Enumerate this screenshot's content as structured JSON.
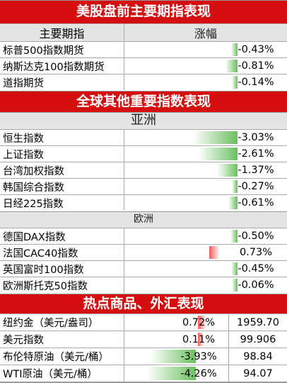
{
  "section_us": {
    "title": "美股盘前主要期指表现",
    "col_index": "主要期指",
    "col_change": "涨幅",
    "rows": [
      {
        "name": "标普500指数期货",
        "change": "-0.43%",
        "level": -0.43
      },
      {
        "name": "纳斯达克100指数期货",
        "change": "-0.81%",
        "level": -0.81
      },
      {
        "name": "道指期货",
        "change": "-0.14%",
        "level": -0.14
      }
    ]
  },
  "section_global": {
    "title": "全球其他重要指数表现",
    "asia": {
      "title": "亚洲",
      "rows": [
        {
          "name": "恒生指数",
          "change": "-3.03%",
          "level": -3.03
        },
        {
          "name": "上证指数",
          "change": "-2.61%",
          "level": -2.61
        },
        {
          "name": "台湾加权指数",
          "change": "-1.37%",
          "level": -1.37
        },
        {
          "name": "韩国综合指数",
          "change": "-0.27%",
          "level": -0.27
        },
        {
          "name": "日经225指数",
          "change": "-0.61%",
          "level": -0.61
        }
      ]
    },
    "europe": {
      "title": "欧洲",
      "rows": [
        {
          "name": "德国DAX指数",
          "change": "-0.50%",
          "level": -0.5
        },
        {
          "name": "法国CAC40指数",
          "change": "0.73%",
          "level": 0.73
        },
        {
          "name": "英国富时100指数",
          "change": "-0.45%",
          "level": -0.45
        },
        {
          "name": "欧洲斯托克50指数",
          "change": "-0.06%",
          "level": -0.06
        }
      ]
    }
  },
  "section_commodity": {
    "title": "热点商品、外汇表现",
    "rows": [
      {
        "name": "纽约金（美元/盎司）",
        "change": "0.72%",
        "level": 0.72,
        "price": "1959.70"
      },
      {
        "name": "美元指数",
        "change": "0.11%",
        "level": 0.11,
        "price": "99.906"
      },
      {
        "name": "布伦特原油（美元/桶）",
        "change": "-3.93%",
        "level": -3.93,
        "price": "98.84"
      },
      {
        "name": "WTI原油（美元/桶）",
        "change": "-4.26%",
        "level": -4.26,
        "price": "94.07"
      }
    ]
  },
  "colors": {
    "band": "#d50f0f",
    "negative_bar": "#6bbf5f",
    "positive_bar": "#f25b5b",
    "subheader": "#e4e4e4"
  }
}
